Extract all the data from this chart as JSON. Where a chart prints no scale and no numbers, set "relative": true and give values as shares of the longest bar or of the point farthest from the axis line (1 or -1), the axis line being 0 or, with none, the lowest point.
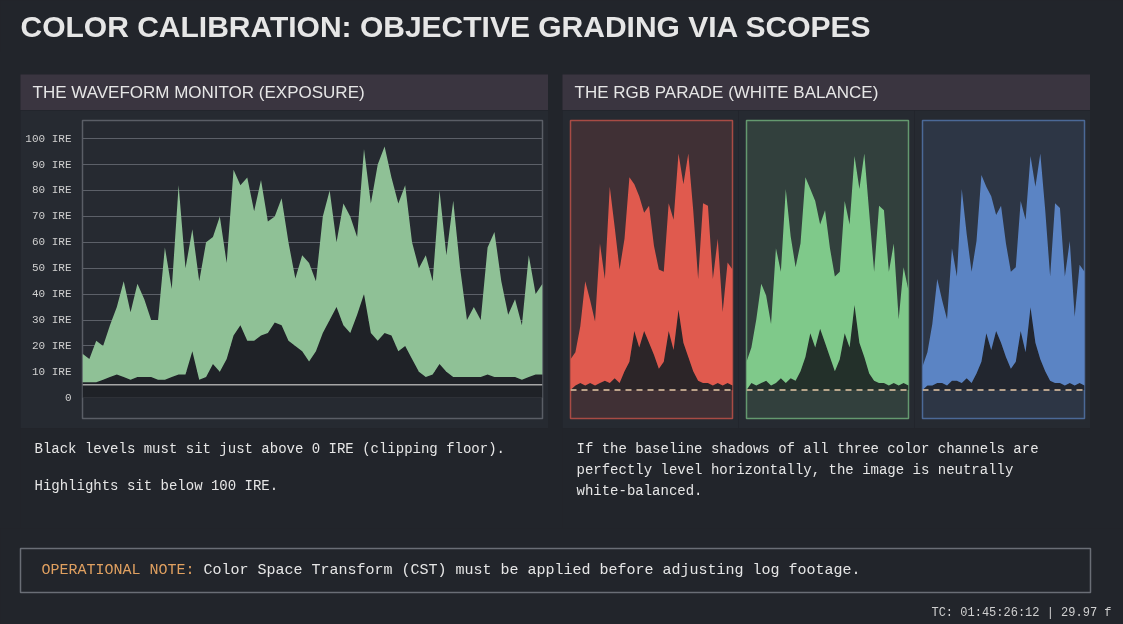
{
  "chart_data": [
    {
      "type": "other",
      "title": "COLOR CALIBRATION: OBJECTIVE GRADING VIA SCOPES"
    },
    {
      "type": "area",
      "title": "THE WAVEFORM MONITOR (EXPOSURE)",
      "stacked": true,
      "categories": [
        null,
        null,
        null,
        null,
        null,
        null,
        null,
        null,
        null,
        null,
        null,
        null,
        null,
        null,
        null,
        null,
        null,
        null,
        null,
        null,
        null,
        null,
        null,
        null,
        null,
        null,
        null,
        null,
        null,
        null,
        null,
        null,
        null,
        null,
        null,
        null,
        null,
        null,
        null,
        null,
        null,
        null,
        null,
        null,
        null,
        null,
        null,
        null,
        null,
        null,
        null,
        null,
        null,
        null,
        null,
        null,
        null,
        null,
        null,
        null,
        null,
        null,
        null,
        null,
        null,
        null,
        null,
        null
      ],
      "series": [
        {
          "color": "#1f2227",
          "values": [
            6,
            6,
            6,
            7,
            8,
            9,
            8,
            7,
            8,
            8,
            8,
            7,
            7,
            8,
            9,
            9,
            18,
            7,
            8,
            13,
            10,
            15,
            24,
            28,
            22,
            22,
            24,
            25,
            29,
            28,
            22,
            20,
            18,
            14,
            18,
            25,
            30,
            35,
            28,
            25,
            32,
            40,
            25,
            22,
            25,
            24,
            18,
            20,
            15,
            10,
            8,
            9,
            13,
            10,
            8,
            8,
            8,
            8,
            8,
            9,
            8,
            8,
            8,
            8,
            7,
            8,
            9,
            9
          ]
        },
        {
          "color": "#8fc196",
          "values": [
            11,
            9,
            16,
            13,
            20,
            26,
            37,
            26,
            36,
            30,
            22,
            23,
            51,
            34,
            73,
            41,
            47,
            38,
            52,
            49,
            60,
            37,
            64,
            54,
            63,
            50,
            60,
            43,
            41,
            49,
            38,
            26,
            37,
            38,
            27,
            45,
            50,
            25,
            47,
            45,
            30,
            56,
            50,
            68,
            72,
            61,
            57,
            62,
            45,
            40,
            47,
            36,
            67,
            45,
            68,
            42,
            22,
            27,
            22,
            49,
            56,
            37,
            24,
            30,
            21,
            47,
            31,
            35
          ]
        }
      ],
      "ylim": [
        -8,
        107
      ],
      "yticks": [
        0,
        {
          "value": 10,
          "label": "10 IRE"
        },
        {
          "value": 20,
          "label": "20 IRE"
        },
        {
          "value": 30,
          "label": "30 IRE"
        },
        {
          "value": 40,
          "label": "40 IRE"
        },
        {
          "value": 50,
          "label": "50 IRE"
        },
        {
          "value": 60,
          "label": "60 IRE"
        },
        {
          "value": 70,
          "label": "70 IRE"
        },
        {
          "value": 80,
          "label": "80 IRE"
        },
        {
          "value": 90,
          "label": "90 IRE"
        },
        {
          "value": 100,
          "label": "100 IRE"
        }
      ],
      "grid": "y",
      "tick_labels": "y",
      "ref_lines": [
        {
          "axis": "y",
          "value": 5,
          "color": "#a6a6a6"
        }
      ],
      "annotations": [
        "Black levels must sit just above 0 IRE (clipping floor).",
        "Highlights sit below 100 IRE."
      ]
    },
    {
      "type": "area",
      "title": "THE RGB PARADE (WHITE BALANCE)",
      "relative": true,
      "stacked": true,
      "categories": [
        null,
        null,
        null,
        null,
        null,
        null,
        null,
        null,
        null,
        null,
        null,
        null,
        null,
        null,
        null,
        null,
        null,
        null,
        null,
        null,
        null,
        null,
        null,
        null,
        null,
        null,
        null,
        null,
        null,
        null,
        null,
        null,
        null,
        null
      ],
      "series": [
        {
          "color": "#2c2528",
          "values": [
            0.0,
            0.02,
            0.03,
            0.02,
            0.03,
            0.02,
            0.03,
            0.04,
            0.03,
            0.05,
            0.03,
            0.08,
            0.12,
            0.25,
            0.18,
            0.25,
            0.2,
            0.15,
            0.09,
            0.12,
            0.25,
            0.17,
            0.34,
            0.2,
            0.14,
            0.08,
            0.04,
            0.03,
            0.03,
            0.02,
            0.03,
            0.02,
            0.03,
            0.02
          ]
        },
        {
          "color": "#e05a4e",
          "values": [
            0.13,
            0.14,
            0.24,
            0.44,
            0.35,
            0.27,
            0.59,
            0.43,
            0.83,
            0.64,
            0.48,
            0.56,
            0.78,
            0.62,
            0.64,
            0.5,
            0.58,
            0.46,
            0.42,
            0.38,
            0.54,
            0.55,
            0.66,
            0.67,
            0.86,
            0.68,
            0.43,
            0.76,
            0.75,
            0.45,
            0.61,
            0.31,
            0.51,
            0.49
          ]
        }
      ],
      "ref_lines": [
        {
          "axis": "y",
          "value": 0,
          "color": "#e6c9a8",
          "line_style": "dashed"
        }
      ],
      "annotations": [
        "If the baseline shadows of all three color channels are perfectly level horizontally, the image is neutrally white-balanced."
      ]
    },
    {
      "type": "area",
      "relative": true,
      "stacked": true,
      "categories": [
        null,
        null,
        null,
        null,
        null,
        null,
        null,
        null,
        null,
        null,
        null,
        null,
        null,
        null,
        null,
        null,
        null,
        null,
        null,
        null,
        null,
        null,
        null,
        null,
        null,
        null,
        null,
        null,
        null,
        null,
        null,
        null,
        null,
        null
      ],
      "series": [
        {
          "color": "#23302a",
          "values": [
            0.0,
            0.03,
            0.02,
            0.03,
            0.04,
            0.02,
            0.03,
            0.05,
            0.03,
            0.05,
            0.04,
            0.08,
            0.14,
            0.24,
            0.18,
            0.26,
            0.2,
            0.14,
            0.08,
            0.13,
            0.24,
            0.18,
            0.36,
            0.2,
            0.14,
            0.07,
            0.04,
            0.03,
            0.03,
            0.02,
            0.03,
            0.02,
            0.03,
            0.02
          ]
        },
        {
          "color": "#7fc98a",
          "values": [
            0.12,
            0.15,
            0.28,
            0.42,
            0.36,
            0.26,
            0.57,
            0.45,
            0.82,
            0.6,
            0.48,
            0.54,
            0.76,
            0.61,
            0.62,
            0.44,
            0.56,
            0.46,
            0.4,
            0.37,
            0.56,
            0.52,
            0.63,
            0.65,
            0.86,
            0.68,
            0.46,
            0.75,
            0.73,
            0.48,
            0.59,
            0.28,
            0.49,
            0.4
          ]
        }
      ],
      "ref_lines": [
        {
          "axis": "y",
          "value": 0,
          "color": "#e6c9a8",
          "line_style": "dashed"
        }
      ]
    },
    {
      "type": "area",
      "relative": true,
      "stacked": true,
      "categories": [
        null,
        null,
        null,
        null,
        null,
        null,
        null,
        null,
        null,
        null,
        null,
        null,
        null,
        null,
        null,
        null,
        null,
        null,
        null,
        null,
        null,
        null,
        null,
        null,
        null,
        null,
        null,
        null,
        null,
        null,
        null,
        null,
        null,
        null
      ],
      "series": [
        {
          "color": "#22262f",
          "values": [
            0.0,
            0.02,
            0.02,
            0.03,
            0.03,
            0.02,
            0.04,
            0.04,
            0.03,
            0.05,
            0.03,
            0.07,
            0.12,
            0.24,
            0.17,
            0.25,
            0.2,
            0.14,
            0.09,
            0.12,
            0.25,
            0.16,
            0.35,
            0.2,
            0.13,
            0.08,
            0.04,
            0.03,
            0.03,
            0.02,
            0.03,
            0.02,
            0.03,
            0.02
          ]
        },
        {
          "color": "#5b84c4",
          "values": [
            0.1,
            0.14,
            0.26,
            0.44,
            0.35,
            0.28,
            0.56,
            0.44,
            0.82,
            0.61,
            0.47,
            0.56,
            0.79,
            0.62,
            0.65,
            0.49,
            0.58,
            0.48,
            0.41,
            0.4,
            0.55,
            0.56,
            0.64,
            0.66,
            0.87,
            0.68,
            0.44,
            0.76,
            0.74,
            0.46,
            0.6,
            0.29,
            0.5,
            0.48
          ]
        }
      ],
      "ref_lines": [
        {
          "axis": "y",
          "value": 0,
          "color": "#e6c9a8",
          "line_style": "dashed"
        }
      ]
    },
    {
      "type": "other",
      "annotations": [
        "OPERATIONAL NOTE:",
        "Color Space Transform (CST) must be applied before adjusting log footage.",
        "TC: 01:45:26:12 | 29.97 f"
      ]
    }
  ]
}
